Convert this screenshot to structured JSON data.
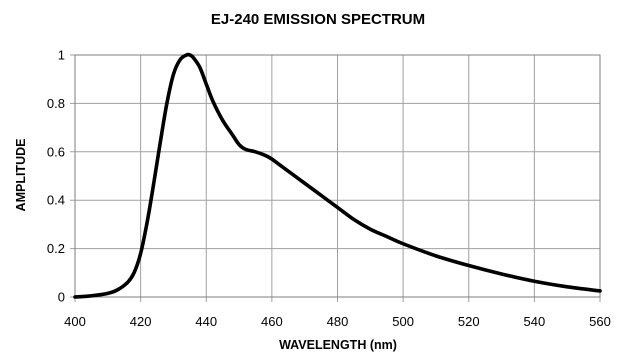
{
  "chart_data": {
    "type": "line",
    "title": "EJ-240 EMISSION SPECTRUM",
    "xlabel": "WAVELENGTH (nm)",
    "ylabel": "AMPLITUDE",
    "xlim": [
      400,
      560
    ],
    "ylim": [
      0,
      1
    ],
    "xticks": [
      400,
      420,
      440,
      460,
      480,
      500,
      520,
      540,
      560
    ],
    "yticks": [
      0,
      0.2,
      0.4,
      0.6,
      0.8,
      1
    ],
    "ytick_labels": [
      "0",
      "0.2",
      "0.4",
      "0.6",
      "0.8",
      "1"
    ],
    "grid": true,
    "legend": false,
    "series": [
      {
        "x": [
          400,
          405,
          410,
          413,
          416,
          418,
          420,
          422,
          424,
          426,
          428,
          430,
          432,
          434,
          435,
          436,
          438,
          440,
          442,
          445,
          448,
          450,
          452,
          455,
          458,
          460,
          462,
          465,
          470,
          475,
          480,
          485,
          490,
          495,
          500,
          510,
          520,
          530,
          540,
          550,
          560
        ],
        "y": [
          0.0,
          0.005,
          0.015,
          0.03,
          0.06,
          0.1,
          0.18,
          0.31,
          0.47,
          0.64,
          0.8,
          0.92,
          0.98,
          1.0,
          1.0,
          0.99,
          0.95,
          0.88,
          0.81,
          0.73,
          0.67,
          0.63,
          0.61,
          0.6,
          0.585,
          0.57,
          0.55,
          0.52,
          0.47,
          0.42,
          0.37,
          0.32,
          0.28,
          0.25,
          0.22,
          0.17,
          0.13,
          0.095,
          0.065,
          0.042,
          0.025
        ]
      }
    ]
  }
}
